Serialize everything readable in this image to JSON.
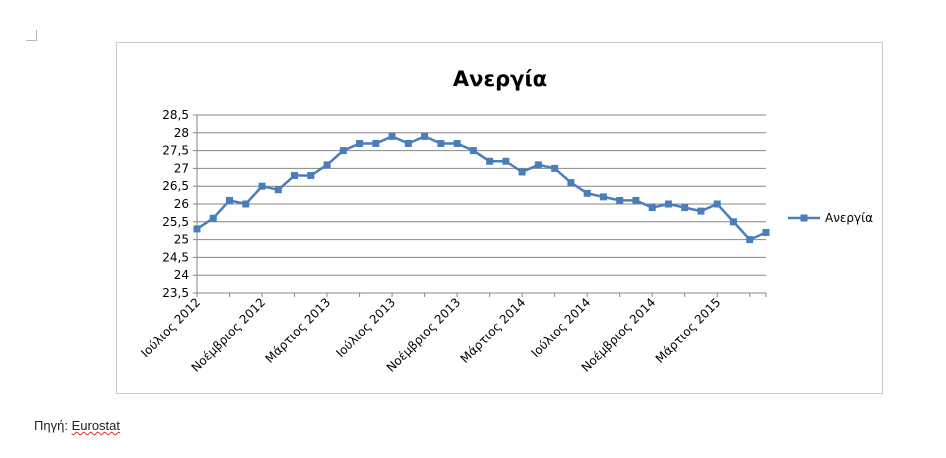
{
  "source": {
    "label": "Πηγή:",
    "value": "Eurostat"
  },
  "colors": {
    "series": "#4a7ebb",
    "grid": "#868686",
    "text": "#000000"
  },
  "chart_data": {
    "type": "line",
    "title": "Ανεργία",
    "xlabel": "",
    "ylabel": "",
    "ylim": [
      23.5,
      28.5
    ],
    "ytick_step": 0.5,
    "yticks": [
      "23,5",
      "24",
      "24,5",
      "25",
      "25,5",
      "26",
      "26,5",
      "27",
      "27,5",
      "28",
      "28,5"
    ],
    "grid": true,
    "legend_position": "right",
    "x_tick_labels": [
      {
        "index": 0,
        "label": "Ιούλιος 2012"
      },
      {
        "index": 4,
        "label": "Νοέμβριος 2012"
      },
      {
        "index": 8,
        "label": "Μάρτιος 2013"
      },
      {
        "index": 12,
        "label": "Ιούλιος 2013"
      },
      {
        "index": 16,
        "label": "Νοέμβριος 2013"
      },
      {
        "index": 20,
        "label": "Μάρτιος 2014"
      },
      {
        "index": 24,
        "label": "Ιούλιος 2014"
      },
      {
        "index": 28,
        "label": "Νοέμβριος 2014"
      },
      {
        "index": 32,
        "label": "Μάρτιος 2015"
      }
    ],
    "series": [
      {
        "name": "Ανεργία",
        "values": [
          25.3,
          25.6,
          26.1,
          26.0,
          26.5,
          26.4,
          26.8,
          26.8,
          27.1,
          27.5,
          27.7,
          27.7,
          27.9,
          27.7,
          27.9,
          27.7,
          27.7,
          27.5,
          27.2,
          27.2,
          26.9,
          27.1,
          27.0,
          26.6,
          26.3,
          26.2,
          26.1,
          26.1,
          25.9,
          26.0,
          25.9,
          25.8,
          26.0,
          25.5,
          25.0,
          25.2
        ]
      }
    ]
  }
}
